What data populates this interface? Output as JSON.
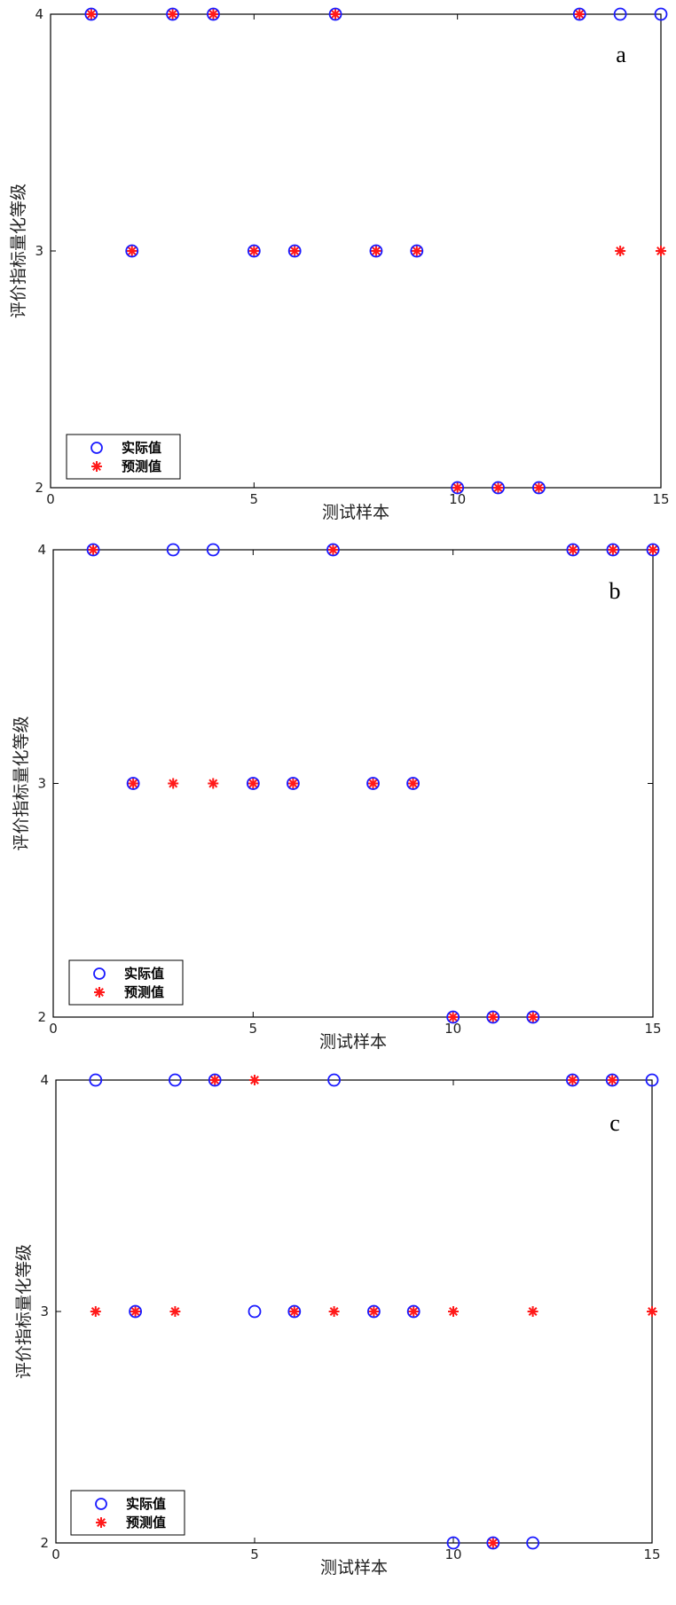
{
  "colors": {
    "actual": "#1a1aff",
    "predicted": "#ff1a1a",
    "axis": "#000000",
    "background": "#ffffff"
  },
  "legend": {
    "actual_label": "实际值",
    "predicted_label": "预测值",
    "placement": "bottom-left"
  },
  "chart_data": [
    {
      "type": "scatter",
      "panel_label": "a",
      "xlabel": "测试样本",
      "ylabel": "评价指标量化等级",
      "xlim": [
        0,
        15
      ],
      "ylim": [
        2,
        4
      ],
      "xticks": [
        0,
        5,
        10,
        15
      ],
      "yticks": [
        2,
        3,
        4
      ],
      "grid": false,
      "x": [
        1,
        2,
        3,
        4,
        5,
        6,
        7,
        8,
        9,
        10,
        11,
        12,
        13,
        14,
        15
      ],
      "series": [
        {
          "name": "实际值",
          "marker": "circle",
          "values": [
            4,
            3,
            4,
            4,
            3,
            3,
            4,
            3,
            3,
            2,
            2,
            2,
            4,
            4,
            4
          ]
        },
        {
          "name": "预测值",
          "marker": "asterisk",
          "values": [
            4,
            3,
            4,
            4,
            3,
            3,
            4,
            3,
            3,
            2,
            2,
            2,
            4,
            3,
            3
          ]
        }
      ]
    },
    {
      "type": "scatter",
      "panel_label": "b",
      "xlabel": "测试样本",
      "ylabel": "评价指标量化等级",
      "xlim": [
        0,
        15
      ],
      "ylim": [
        2,
        4
      ],
      "xticks": [
        0,
        5,
        10,
        15
      ],
      "yticks": [
        2,
        3,
        4
      ],
      "grid": false,
      "x": [
        1,
        2,
        3,
        4,
        5,
        6,
        7,
        8,
        9,
        10,
        11,
        12,
        13,
        14,
        15
      ],
      "series": [
        {
          "name": "实际值",
          "marker": "circle",
          "values": [
            4,
            3,
            4,
            4,
            3,
            3,
            4,
            3,
            3,
            2,
            2,
            2,
            4,
            4,
            4
          ]
        },
        {
          "name": "预测值",
          "marker": "asterisk",
          "values": [
            4,
            3,
            3,
            3,
            3,
            3,
            4,
            3,
            3,
            2,
            2,
            2,
            4,
            4,
            4
          ]
        }
      ]
    },
    {
      "type": "scatter",
      "panel_label": "c",
      "xlabel": "测试样本",
      "ylabel": "评价指标量化等级",
      "xlim": [
        0,
        15
      ],
      "ylim": [
        2,
        4
      ],
      "xticks": [
        0,
        5,
        10,
        15
      ],
      "yticks": [
        2,
        3,
        4
      ],
      "grid": false,
      "x": [
        1,
        2,
        3,
        4,
        5,
        6,
        7,
        8,
        9,
        10,
        11,
        12,
        13,
        14,
        15
      ],
      "series": [
        {
          "name": "实际值",
          "marker": "circle",
          "values": [
            4,
            3,
            4,
            4,
            3,
            3,
            4,
            3,
            3,
            2,
            2,
            2,
            4,
            4,
            4
          ]
        },
        {
          "name": "预测值",
          "marker": "asterisk",
          "values": [
            3,
            3,
            3,
            4,
            4,
            3,
            3,
            3,
            3,
            3,
            2,
            3,
            4,
            4,
            3
          ]
        }
      ]
    }
  ]
}
